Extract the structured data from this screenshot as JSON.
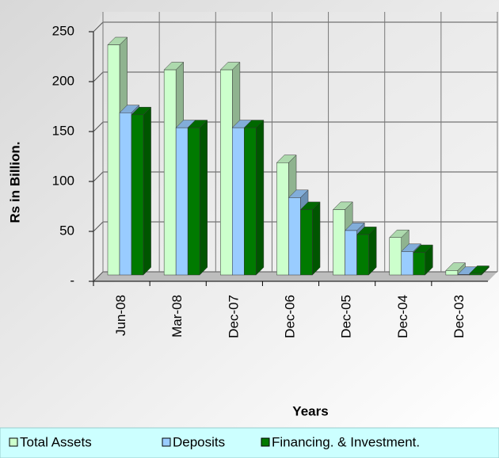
{
  "chart_data": {
    "type": "bar3d",
    "categories": [
      "Jun-08",
      "Mar-08",
      "Dec-07",
      "Dec-06",
      "Dec-05",
      "Dec-04",
      "Dec-03"
    ],
    "series": [
      {
        "name": "Total Assets",
        "color": "#ccffcc",
        "values": [
          240,
          215,
          215,
          122,
          75,
          47,
          14
        ]
      },
      {
        "name": "Deposits",
        "color": "#99ccff",
        "values": [
          172,
          157,
          157,
          87,
          54,
          33,
          10
        ]
      },
      {
        "name": "Financing. & Investment.",
        "color": "#007a00",
        "values": [
          170,
          157,
          157,
          75,
          50,
          32,
          11
        ]
      }
    ],
    "ylim": [
      0,
      250
    ],
    "yticks": [
      {
        "value": 0,
        "label": "-"
      },
      50,
      100,
      150,
      200,
      250
    ],
    "ylabel": "Rs in Billion.",
    "xlabel": "Years",
    "grid": true
  }
}
